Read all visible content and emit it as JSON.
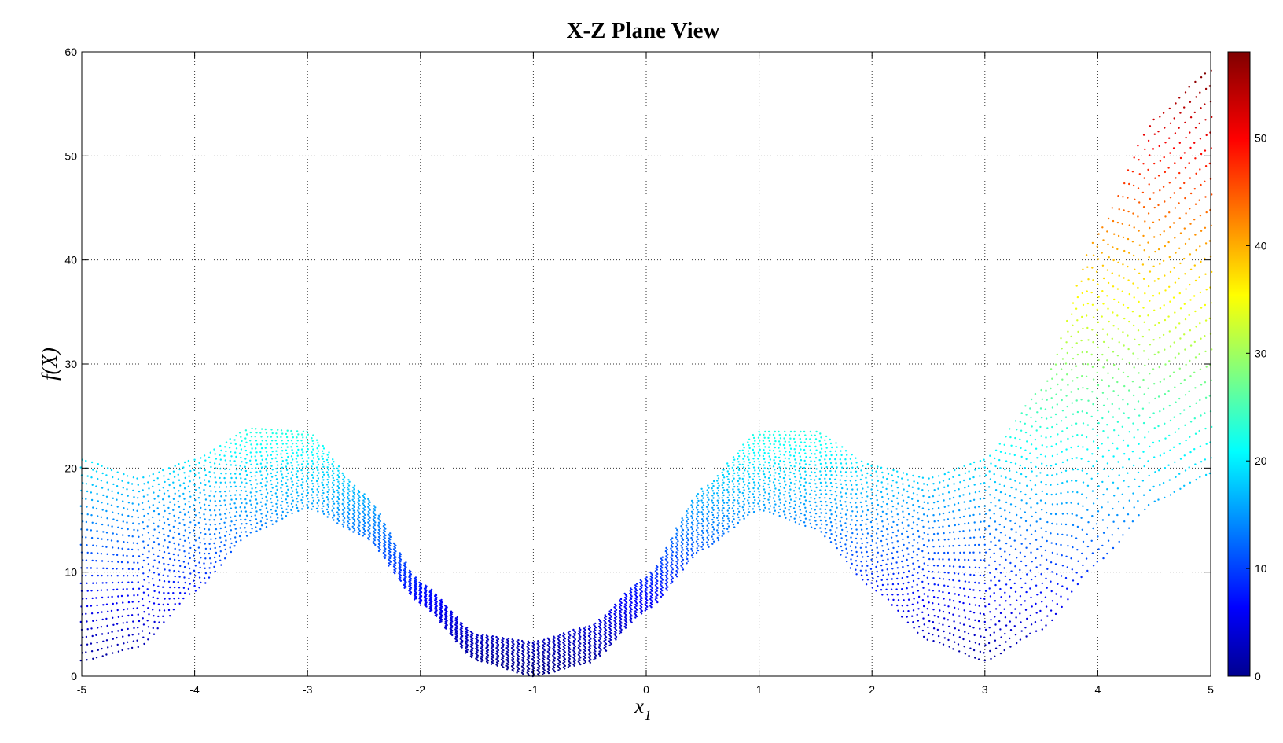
{
  "chart_data": {
    "type": "scatter",
    "title": "X-Z Plane View",
    "xlabel": "x",
    "xlabel_subscript": "1",
    "ylabel": "f(X)",
    "xlim": [
      -5,
      5
    ],
    "ylim": [
      0,
      60
    ],
    "xticks": [
      "-5",
      "-4",
      "-3",
      "-2",
      "-1",
      "0",
      "1",
      "2",
      "3",
      "4",
      "5"
    ],
    "yticks": [
      "0",
      "10",
      "20",
      "30",
      "40",
      "50",
      "60"
    ],
    "grid": true,
    "colormap": "jet",
    "colorbar": {
      "range": [
        0,
        58
      ],
      "ticks": [
        "0",
        "10",
        "20",
        "30",
        "40",
        "50"
      ]
    },
    "series": [
      {
        "x": [
          -5,
          -4.5,
          -4,
          -3.5,
          -3,
          -2.5,
          -2,
          -1.5,
          -1,
          -0.5,
          0,
          0.5,
          1,
          1.5,
          2,
          2.5,
          3,
          3.5,
          4,
          4.5,
          5
        ],
        "lower": [
          1.5,
          2.8,
          8.2,
          13.8,
          16.2,
          13.5,
          7.0,
          1.5,
          0.0,
          1.3,
          6.3,
          12.2,
          16.0,
          14.2,
          8.5,
          3.5,
          1.5,
          4.5,
          11.0,
          16.8,
          19.5
        ],
        "upper": [
          20.8,
          19.0,
          20.8,
          23.8,
          23.5,
          17.5,
          9.0,
          4.0,
          3.3,
          4.8,
          9.5,
          18.0,
          23.5,
          23.5,
          20.2,
          19.0,
          20.8,
          27.5,
          42.5,
          53.5,
          58.2
        ]
      }
    ]
  }
}
